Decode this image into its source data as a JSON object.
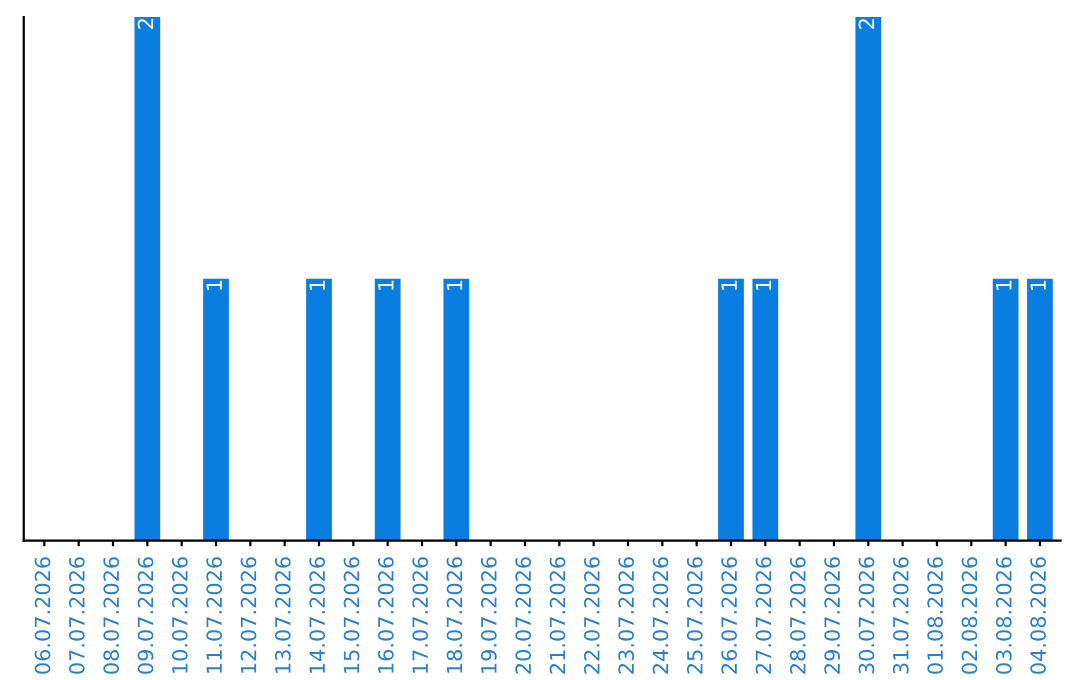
{
  "chart_data": {
    "type": "bar",
    "categories": [
      "06.07.2026",
      "07.07.2026",
      "08.07.2026",
      "09.07.2026",
      "10.07.2026",
      "11.07.2026",
      "12.07.2026",
      "13.07.2026",
      "14.07.2026",
      "15.07.2026",
      "16.07.2026",
      "17.07.2026",
      "18.07.2026",
      "19.07.2026",
      "20.07.2026",
      "21.07.2026",
      "22.07.2026",
      "23.07.2026",
      "24.07.2026",
      "25.07.2026",
      "26.07.2026",
      "27.07.2026",
      "28.07.2026",
      "29.07.2026",
      "30.07.2026",
      "31.07.2026",
      "01.08.2026",
      "02.08.2026",
      "03.08.2026",
      "04.08.2026"
    ],
    "values": [
      0,
      0,
      0,
      2,
      0,
      1,
      0,
      0,
      1,
      0,
      1,
      0,
      1,
      0,
      0,
      0,
      0,
      0,
      0,
      0,
      1,
      1,
      0,
      0,
      2,
      0,
      0,
      0,
      1,
      1
    ],
    "value_labels": [
      null,
      null,
      null,
      "2",
      null,
      "1",
      null,
      null,
      "1",
      null,
      "1",
      null,
      "1",
      null,
      null,
      null,
      null,
      null,
      null,
      null,
      "1",
      "1",
      null,
      null,
      "2",
      null,
      null,
      null,
      "1",
      "1"
    ],
    "color": "#0a7de0",
    "tick_labels": "x",
    "grid": false,
    "legend": false
  }
}
